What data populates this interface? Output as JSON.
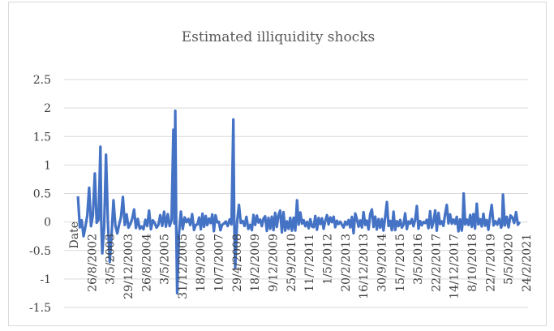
{
  "chart_data": {
    "type": "line",
    "title": "Estimated illiquidity shocks",
    "xlabel": "",
    "ylabel": "",
    "ylim": [
      -1.5,
      2.5
    ],
    "yticks": [
      "2.5",
      "2",
      "1.5",
      "1",
      "0.5",
      "0",
      "-0.5",
      "-1",
      "-1.5"
    ],
    "x_tick_labels": [
      "Date",
      "26/8/2002",
      "3/5/2003",
      "29/12/2003",
      "26/8/2004",
      "3/5/2005",
      "31/12/2005",
      "18/9/2006",
      "10/7/2007",
      "29/4/2008",
      "18/2/2009",
      "9/12/2009",
      "25/9/2010",
      "11/7/2011",
      "1/5/2012",
      "20/2/2013",
      "16/12/2013",
      "30/9/2014",
      "15/7/2015",
      "3/5/2016",
      "22/2/2017",
      "14/12/2017",
      "8/10/2018",
      "22/7/2019",
      "5/5/2020",
      "24/2/2021"
    ],
    "grid": true,
    "legend": "none",
    "series": [
      {
        "color": "#4472c4",
        "x": [
          "8/2001",
          "11/2001",
          "2/2002",
          "5/2002",
          "8/2002",
          "9/2002",
          "11/2002",
          "1/2003",
          "3/2003",
          "5/2003",
          "8/2003",
          "11/2003",
          "2/2004",
          "6/2004",
          "10/2004",
          "2/2005",
          "6/2005",
          "11/2005",
          "12/2005",
          "1/2006",
          "5/2006",
          "11/2006",
          "6/2007",
          "1/2008",
          "7/2008",
          "8/2008",
          "10/2008",
          "4/2009",
          "12/2009",
          "8/2010",
          "5/2011",
          "1/2012",
          "9/2012",
          "5/2013",
          "1/2014",
          "9/2014",
          "5/2015",
          "1/2016",
          "9/2016",
          "5/2017",
          "1/2018",
          "9/2018",
          "10/2018",
          "5/2019",
          "1/2020",
          "6/2020",
          "7/2020",
          "12/2020",
          "4/2021"
        ],
        "values": [
          0.45,
          -0.25,
          0.6,
          0.85,
          1.32,
          -0.55,
          1.18,
          -0.7,
          0.38,
          -0.2,
          0.44,
          -0.1,
          0.22,
          -0.08,
          0.2,
          -0.1,
          0.18,
          1.62,
          1.95,
          -1.25,
          0.08,
          -0.05,
          0.06,
          -0.05,
          1.8,
          -0.8,
          0.3,
          -0.05,
          0.1,
          0.2,
          0.38,
          -0.08,
          0.12,
          -0.05,
          0.05,
          0.22,
          0.35,
          -0.1,
          0.28,
          -0.1,
          0.3,
          -0.15,
          0.5,
          0.32,
          0.3,
          -0.1,
          0.48,
          0.08,
          0.0
        ]
      }
    ]
  }
}
